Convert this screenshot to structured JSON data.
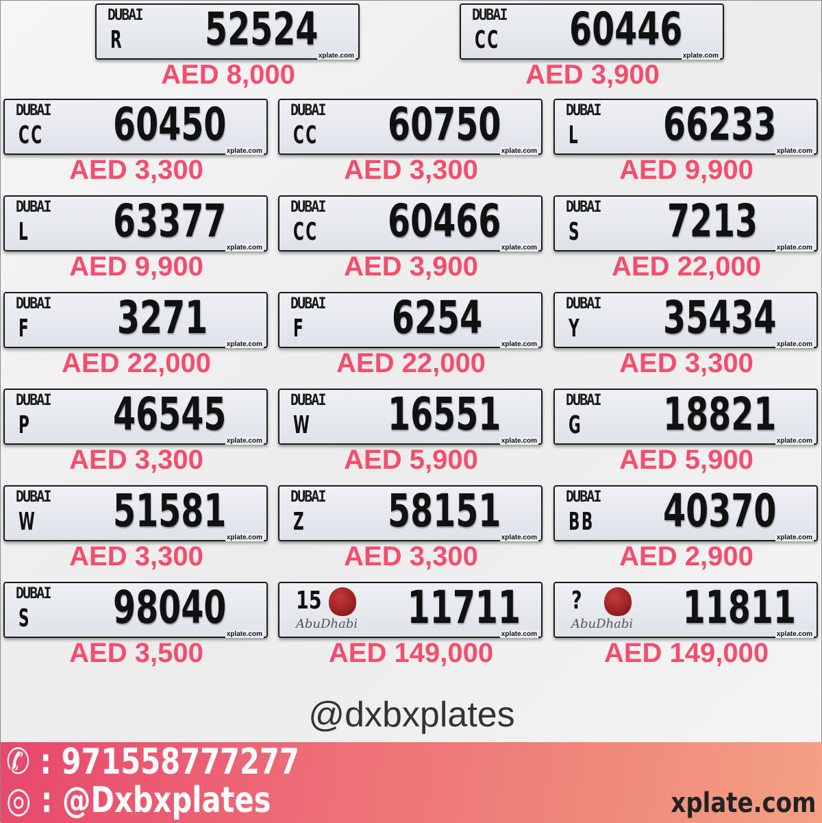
{
  "plates": [
    {
      "emirate": "Dubai",
      "code": "R",
      "number": "52524",
      "price": "AED 8,000"
    },
    {
      "emirate": "Dubai",
      "code": "CC",
      "number": "60446",
      "price": "AED 3,900"
    },
    {
      "emirate": "Dubai",
      "code": "CC",
      "number": "60450",
      "price": "AED 3,300"
    },
    {
      "emirate": "Dubai",
      "code": "CC",
      "number": "60750",
      "price": "AED 3,300"
    },
    {
      "emirate": "Dubai",
      "code": "L",
      "number": "66233",
      "price": "AED 9,900"
    },
    {
      "emirate": "Dubai",
      "code": "L",
      "number": "63377",
      "price": "AED 9,900"
    },
    {
      "emirate": "Dubai",
      "code": "CC",
      "number": "60466",
      "price": "AED 3,900"
    },
    {
      "emirate": "Dubai",
      "code": "S",
      "number": "7213",
      "price": "AED 22,000"
    },
    {
      "emirate": "Dubai",
      "code": "F",
      "number": "3271",
      "price": "AED 22,000"
    },
    {
      "emirate": "Dubai",
      "code": "F",
      "number": "6254",
      "price": "AED 22,000"
    },
    {
      "emirate": "Dubai",
      "code": "Y",
      "number": "35434",
      "price": "AED 3,300"
    },
    {
      "emirate": "Dubai",
      "code": "P",
      "number": "46545",
      "price": "AED 3,300"
    },
    {
      "emirate": "Dubai",
      "code": "W",
      "number": "16551",
      "price": "AED 5,900"
    },
    {
      "emirate": "Dubai",
      "code": "G",
      "number": "18821",
      "price": "AED 5,900"
    },
    {
      "emirate": "Dubai",
      "code": "W",
      "number": "51581",
      "price": "AED 3,300"
    },
    {
      "emirate": "Dubai",
      "code": "Z",
      "number": "58151",
      "price": "AED 3,300"
    },
    {
      "emirate": "Dubai",
      "code": "BB",
      "number": "40370",
      "price": "AED 2,900"
    },
    {
      "emirate": "Dubai",
      "code": "S",
      "number": "98040",
      "price": "AED 3,500"
    },
    {
      "emirate": "Abu Dhabi",
      "code": "15",
      "number": "11711",
      "price": "AED 149,000"
    },
    {
      "emirate": "Abu Dhabi",
      "code": "?",
      "number": "11811",
      "price": "AED 149,000"
    }
  ],
  "plate_labels": {
    "dubai_logo": "DUBAI",
    "abudhabi_logo": "AbuDhabi",
    "watermark": "xplate.com"
  },
  "handle": "@dxbxplates",
  "footer": {
    "phone_icon": "phone-icon",
    "phone": ": 971558777277",
    "instagram_icon": "instagram-icon",
    "instagram": ": @Dxbxplates",
    "site": "xplate.com"
  },
  "colors": {
    "price": "#f54d6e",
    "footer_start": "#e8476c",
    "footer_end": "#f4a184"
  }
}
